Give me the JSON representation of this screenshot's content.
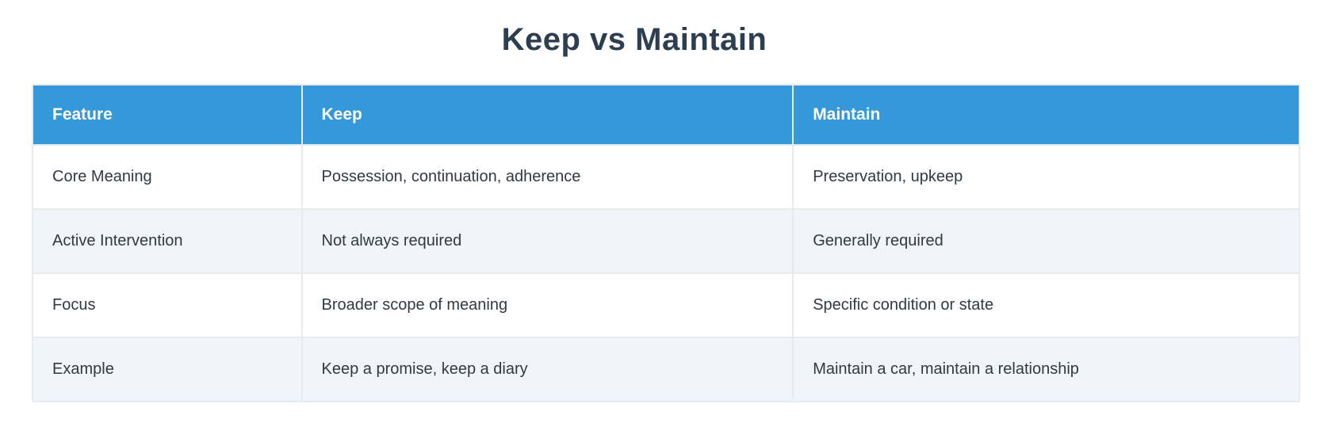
{
  "title": "Keep vs Maintain",
  "table": {
    "columns": [
      "Feature",
      "Keep",
      "Maintain"
    ],
    "rows": [
      [
        "Core Meaning",
        "Possession, continuation, adherence",
        "Preservation, upkeep"
      ],
      [
        "Active Intervention",
        "Not always required",
        "Generally required"
      ],
      [
        "Focus",
        "Broader scope of meaning",
        "Specific condition or state"
      ],
      [
        "Example",
        "Keep a promise, keep a diary",
        "Maintain a car, maintain a relationship"
      ]
    ]
  },
  "colors": {
    "header_bg": "#3498db",
    "header_text": "#ffffff",
    "title_text": "#2c3e50",
    "body_text": "#333940",
    "row_alt_bg": "#f1f5f9",
    "grid_line": "#e8ebee",
    "page_bg": "#ffffff"
  }
}
